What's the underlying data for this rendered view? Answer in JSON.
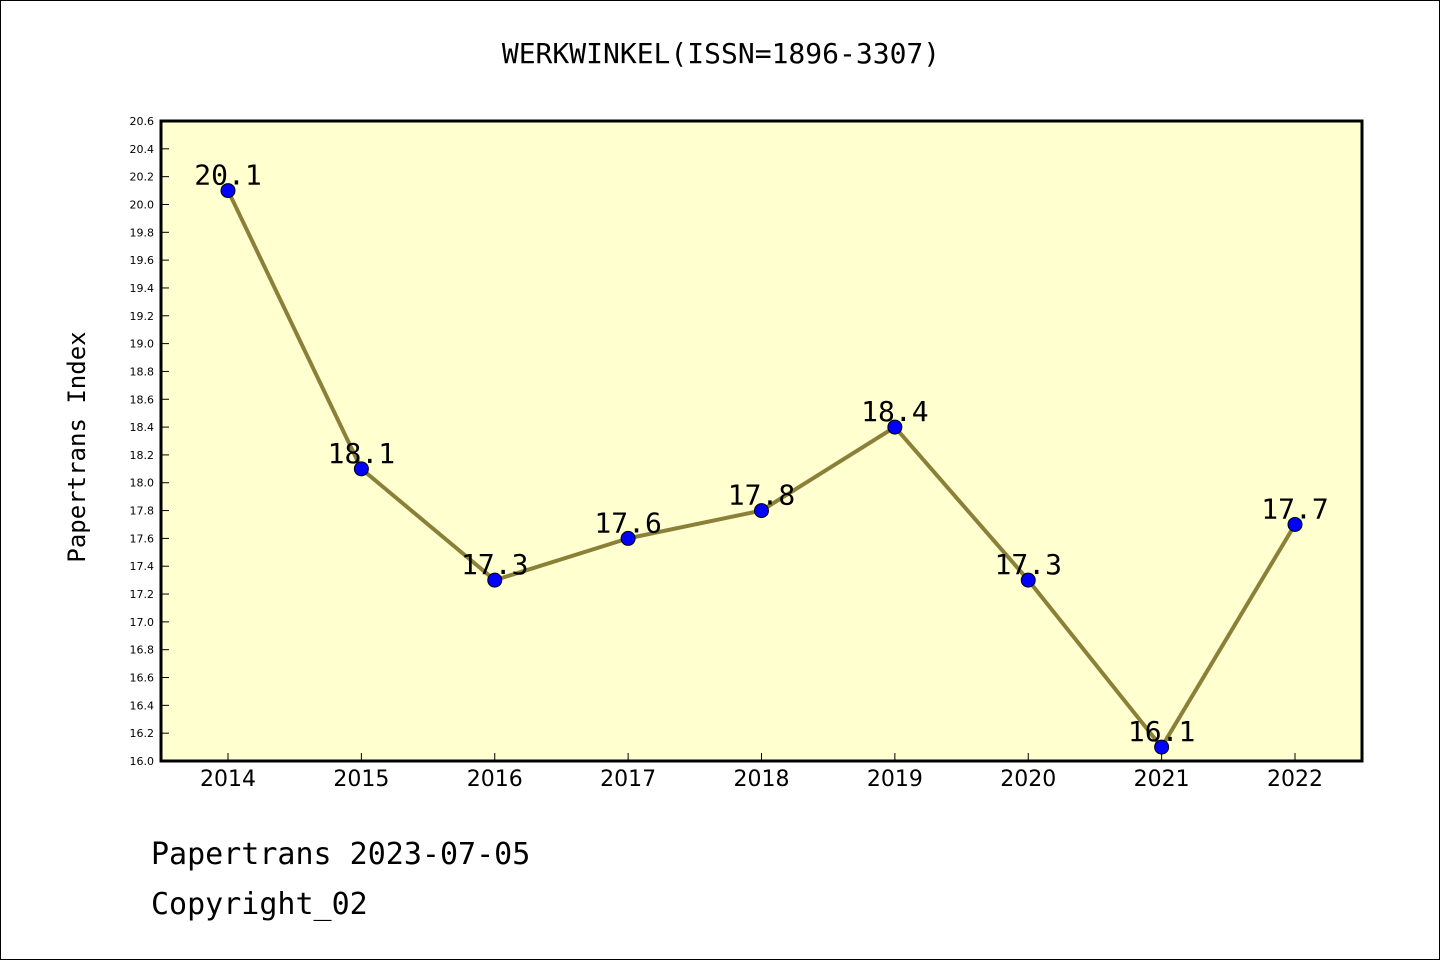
{
  "chart_data": {
    "type": "line",
    "title": "WERKWINKEL(ISSN=1896-3307)",
    "xlabel": "",
    "ylabel": "Papertrans Index",
    "categories": [
      "2014",
      "2015",
      "2016",
      "2017",
      "2018",
      "2019",
      "2020",
      "2021",
      "2022"
    ],
    "series": [
      {
        "values": [
          20.1,
          18.1,
          17.3,
          17.6,
          17.8,
          18.4,
          17.3,
          16.1,
          17.7
        ],
        "data_labels": [
          "20.1",
          "18.1",
          "17.3",
          "17.6",
          "17.8",
          "18.4",
          "17.3",
          "16.1",
          "17.7"
        ]
      }
    ],
    "ylim": [
      16.0,
      20.6
    ],
    "ytick_step": 0.2,
    "yticks": [
      "16.0",
      "16.2",
      "16.4",
      "16.6",
      "16.8",
      "17.0",
      "17.2",
      "17.4",
      "17.6",
      "17.8",
      "18.0",
      "18.2",
      "18.4",
      "18.6",
      "18.8",
      "19.0",
      "19.2",
      "19.4",
      "19.6",
      "19.8",
      "20.0",
      "20.2",
      "20.4",
      "20.6"
    ],
    "grid": false,
    "colors": {
      "plot_background": "#ffffd0",
      "line": "#8b8038",
      "marker": "#0000ff",
      "frame": "#000000"
    }
  },
  "footer": {
    "source": "Papertrans 2023-07-05",
    "copyright": "Copyright_02"
  }
}
